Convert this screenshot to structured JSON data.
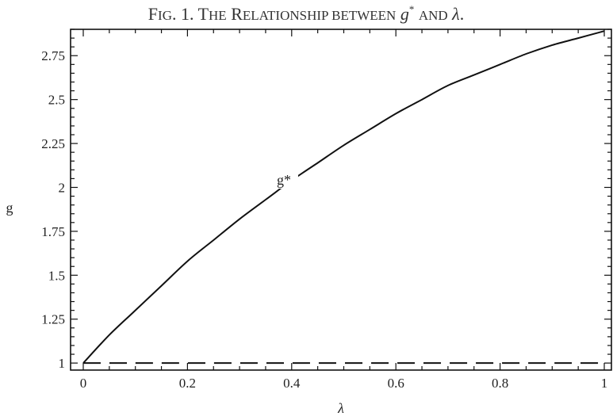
{
  "figure": {
    "title_parts": [
      {
        "text": "F",
        "style": "normal"
      },
      {
        "text": "IG",
        "style": "sc"
      },
      {
        "text": ". 1.   T",
        "style": "normal"
      },
      {
        "text": "HE",
        "style": "sc"
      },
      {
        "text": " R",
        "style": "normal"
      },
      {
        "text": "ELATIONSHIP BETWEEN",
        "style": "sc"
      },
      {
        "text": " ",
        "style": "normal"
      },
      {
        "text": "g",
        "style": "italic"
      },
      {
        "text": "*",
        "style": "sup"
      },
      {
        "text": " ",
        "style": "normal"
      },
      {
        "text": "AND",
        "style": "sc"
      },
      {
        "text": " ",
        "style": "normal"
      },
      {
        "text": "λ",
        "style": "italic"
      },
      {
        "text": ".",
        "style": "normal"
      }
    ]
  },
  "chart_data": {
    "type": "line",
    "title": "FIG. 1. THE RELATIONSHIP BETWEEN g* AND λ.",
    "xlabel": "λ",
    "ylabel": "g",
    "xlim": [
      0,
      1
    ],
    "ylim": [
      0.96,
      2.9
    ],
    "grid": false,
    "x_ticks": [
      0,
      0.2,
      0.4,
      0.6,
      0.8,
      1
    ],
    "x_tick_labels": [
      "0",
      "0.2",
      "0.4",
      "0.6",
      "0.8",
      "1"
    ],
    "x_minor_step": 0.05,
    "y_ticks": [
      1,
      1.25,
      1.5,
      1.75,
      2,
      2.25,
      2.5,
      2.75
    ],
    "y_tick_labels": [
      "1",
      "1.25",
      "1.5",
      "1.75",
      "2",
      "2.25",
      "2.5",
      "2.75"
    ],
    "y_minor_step": 0.05,
    "series": [
      {
        "name": "g*",
        "style": "solid",
        "label": {
          "text": "g*",
          "x": 0.385,
          "y": 2.02
        },
        "x": [
          0,
          0.05,
          0.1,
          0.15,
          0.2,
          0.25,
          0.3,
          0.35,
          0.4,
          0.45,
          0.5,
          0.55,
          0.6,
          0.65,
          0.7,
          0.75,
          0.8,
          0.85,
          0.9,
          0.95,
          1
        ],
        "y": [
          1.0,
          1.16,
          1.3,
          1.44,
          1.58,
          1.7,
          1.82,
          1.93,
          2.04,
          2.14,
          2.24,
          2.33,
          2.42,
          2.5,
          2.58,
          2.64,
          2.7,
          2.76,
          2.81,
          2.85,
          2.89
        ]
      },
      {
        "style": "dashed",
        "x": [
          0,
          1
        ],
        "y": [
          1,
          1
        ]
      }
    ]
  }
}
